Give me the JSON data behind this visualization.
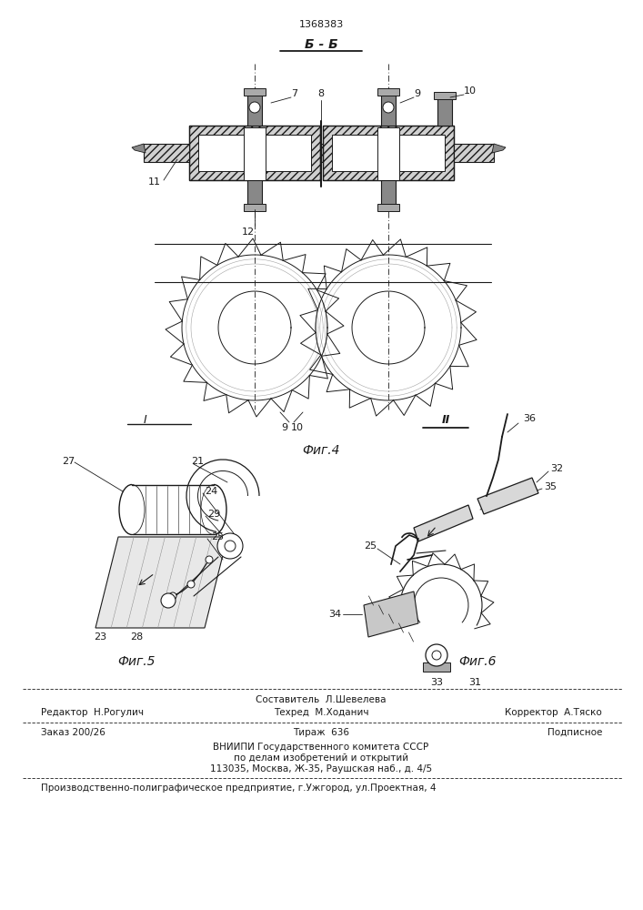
{
  "patent_number": "1368383",
  "section_label": "Б - Б",
  "fig4_label": "Фиг.4",
  "fig5_label": "Фиг.5",
  "fig6_label": "Фиг.6",
  "bg_color": "#ffffff",
  "line_color": "#1a1a1a",
  "footer_line1_left": "Редактор  Н.Рогулич",
  "footer_line1_center": "Техред  М.Ходанич",
  "footer_line1_center_top": "Составитель  Л.Шевелева",
  "footer_line1_right": "Корректор  А.Тяско",
  "footer_line2_left": "Заказ 200/26",
  "footer_line2_center": "Тираж  636",
  "footer_line2_right": "Подписное",
  "footer_line3": "ВНИИПИ Государственного комитета СССР",
  "footer_line4": "по делам изобретений и открытий",
  "footer_line5": "113035, Москва, Ж-35, Раушская наб., д. 4/5",
  "footer_line6": "Производственно-полиграфическое предприятие, г.Ужгород, ул.Проектная, 4"
}
